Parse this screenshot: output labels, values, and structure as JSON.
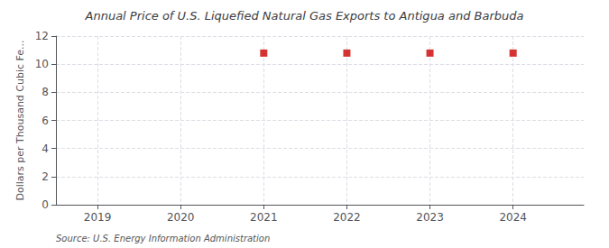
{
  "chart_data": {
    "type": "scatter",
    "title": "Annual Price of U.S. Liquefied Natural Gas Exports to Antigua and Barbuda",
    "ylabel": "Dollars per Thousand Cubic Fe...",
    "source": "Source: U.S. Energy Information Administration",
    "x": [
      2021,
      2022,
      2023,
      2024
    ],
    "values": [
      10.79,
      10.79,
      10.79,
      10.79
    ],
    "color": "#cc0000",
    "marker": "square",
    "xlim": [
      2018.5,
      2024.85
    ],
    "xticks": [
      2019,
      2020,
      2021,
      2022,
      2023,
      2024
    ],
    "ylim": [
      0,
      12
    ],
    "yticks": [
      0,
      2,
      4,
      6,
      8,
      10,
      12
    ],
    "grid": true
  }
}
